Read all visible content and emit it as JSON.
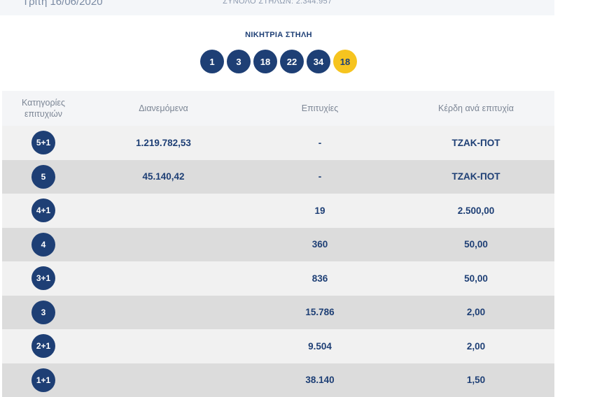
{
  "header": {
    "date": "Τρίτη 16/06/2020",
    "total_columns": "ΣΥΝΟΛΟ ΣΤΗΛΩΝ: 2.344.957"
  },
  "winning_column": {
    "title": "ΝΙΚΗΤΡΙΑ ΣΤΗΛΗ",
    "numbers": [
      "1",
      "3",
      "18",
      "22",
      "34"
    ],
    "joker": "18"
  },
  "table": {
    "columns": [
      "Κατηγορίες επιτυχιών",
      "Διανεμόμενα",
      "Επιτυχίες",
      "Κέρδη ανά επιτυχία"
    ],
    "rows": [
      [
        "5+1",
        "1.219.782,53",
        "-",
        "ΤΖΑΚ-ΠΟΤ"
      ],
      [
        "5",
        "45.140,42",
        "-",
        "ΤΖΑΚ-ΠΟΤ"
      ],
      [
        "4+1",
        "",
        "19",
        "2.500,00"
      ],
      [
        "4",
        "",
        "360",
        "50,00"
      ],
      [
        "3+1",
        "",
        "836",
        "50,00"
      ],
      [
        "3",
        "",
        "15.786",
        "2,00"
      ],
      [
        "2+1",
        "",
        "9.504",
        "2,00"
      ],
      [
        "1+1",
        "",
        "38.140",
        "1,50"
      ]
    ]
  }
}
